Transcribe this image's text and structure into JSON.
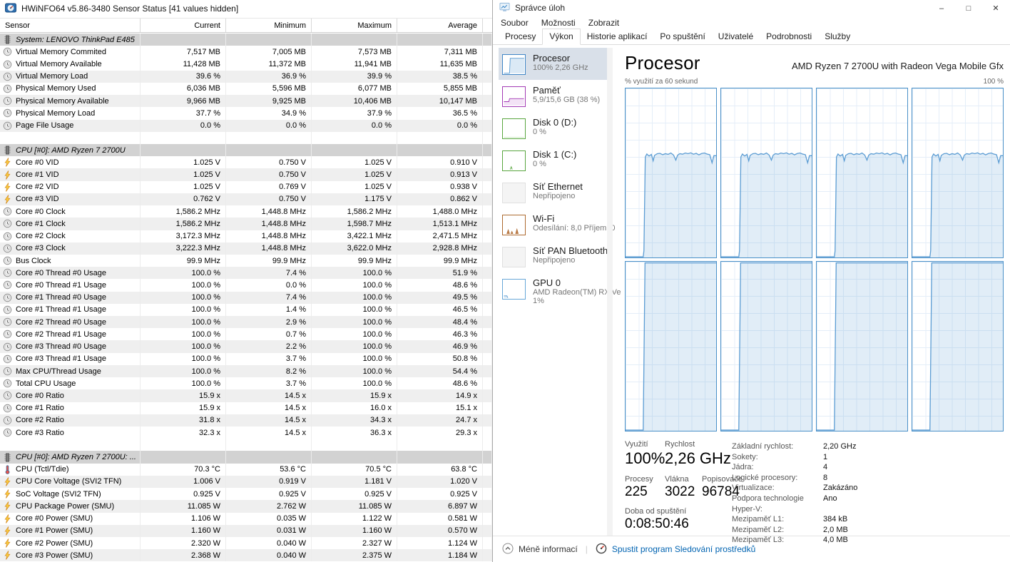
{
  "hwinfo": {
    "title": "HWiNFO64 v5.86-3480 Sensor Status [41 values hidden]",
    "columns": [
      "Sensor",
      "Current",
      "Minimum",
      "Maximum",
      "Average"
    ],
    "rows": [
      {
        "type": "group",
        "icon": "chip-icon",
        "label": "System: LENOVO ThinkPad E485"
      },
      {
        "type": "data",
        "icon": "clock-icon",
        "label": "Virtual Memory Commited",
        "values": [
          "7,517 MB",
          "7,005 MB",
          "7,573 MB",
          "7,311 MB"
        ],
        "shade": false
      },
      {
        "type": "data",
        "icon": "clock-icon",
        "label": "Virtual Memory Available",
        "values": [
          "11,428 MB",
          "11,372 MB",
          "11,941 MB",
          "11,635 MB"
        ],
        "shade": false
      },
      {
        "type": "data",
        "icon": "clock-icon",
        "label": "Virtual Memory Load",
        "values": [
          "39.6 %",
          "36.9 %",
          "39.9 %",
          "38.5 %"
        ],
        "shade": true
      },
      {
        "type": "data",
        "icon": "clock-icon",
        "label": "Physical Memory Used",
        "values": [
          "6,036 MB",
          "5,596 MB",
          "6,077 MB",
          "5,855 MB"
        ],
        "shade": false
      },
      {
        "type": "data",
        "icon": "clock-icon",
        "label": "Physical Memory Available",
        "values": [
          "9,966 MB",
          "9,925 MB",
          "10,406 MB",
          "10,147 MB"
        ],
        "shade": true
      },
      {
        "type": "data",
        "icon": "clock-icon",
        "label": "Physical Memory Load",
        "values": [
          "37.7 %",
          "34.9 %",
          "37.9 %",
          "36.5 %"
        ],
        "shade": false
      },
      {
        "type": "data",
        "icon": "clock-icon",
        "label": "Page File Usage",
        "values": [
          "0.0 %",
          "0.0 %",
          "0.0 %",
          "0.0 %"
        ],
        "shade": true
      },
      {
        "type": "blank"
      },
      {
        "type": "group",
        "icon": "chip-icon",
        "label": "CPU [#0]: AMD Ryzen 7 2700U"
      },
      {
        "type": "data",
        "icon": "bolt-icon",
        "label": "Core #0 VID",
        "values": [
          "1.025 V",
          "0.750 V",
          "1.025 V",
          "0.910 V"
        ],
        "shade": false
      },
      {
        "type": "data",
        "icon": "bolt-icon",
        "label": "Core #1 VID",
        "values": [
          "1.025 V",
          "0.750 V",
          "1.025 V",
          "0.913 V"
        ],
        "shade": true
      },
      {
        "type": "data",
        "icon": "bolt-icon",
        "label": "Core #2 VID",
        "values": [
          "1.025 V",
          "0.769 V",
          "1.025 V",
          "0.938 V"
        ],
        "shade": false
      },
      {
        "type": "data",
        "icon": "bolt-icon",
        "label": "Core #3 VID",
        "values": [
          "0.762 V",
          "0.750 V",
          "1.175 V",
          "0.862 V"
        ],
        "shade": true
      },
      {
        "type": "data",
        "icon": "clock-icon",
        "label": "Core #0 Clock",
        "values": [
          "1,586.2 MHz",
          "1,448.8 MHz",
          "1,586.2 MHz",
          "1,488.0 MHz"
        ],
        "shade": false
      },
      {
        "type": "data",
        "icon": "clock-icon",
        "label": "Core #1 Clock",
        "values": [
          "1,586.2 MHz",
          "1,448.8 MHz",
          "1,598.7 MHz",
          "1,513.1 MHz"
        ],
        "shade": true
      },
      {
        "type": "data",
        "icon": "clock-icon",
        "label": "Core #2 Clock",
        "values": [
          "3,172.3 MHz",
          "1,448.8 MHz",
          "3,422.1 MHz",
          "2,471.5 MHz"
        ],
        "shade": false
      },
      {
        "type": "data",
        "icon": "clock-icon",
        "label": "Core #3 Clock",
        "values": [
          "3,222.3 MHz",
          "1,448.8 MHz",
          "3,622.0 MHz",
          "2,928.8 MHz"
        ],
        "shade": true
      },
      {
        "type": "data",
        "icon": "clock-icon",
        "label": "Bus Clock",
        "values": [
          "99.9 MHz",
          "99.9 MHz",
          "99.9 MHz",
          "99.9 MHz"
        ],
        "shade": false
      },
      {
        "type": "data",
        "icon": "clock-icon",
        "label": "Core #0 Thread #0 Usage",
        "values": [
          "100.0 %",
          "7.4 %",
          "100.0 %",
          "51.9 %"
        ],
        "shade": true
      },
      {
        "type": "data",
        "icon": "clock-icon",
        "label": "Core #0 Thread #1 Usage",
        "values": [
          "100.0 %",
          "0.0 %",
          "100.0 %",
          "48.6 %"
        ],
        "shade": false
      },
      {
        "type": "data",
        "icon": "clock-icon",
        "label": "Core #1 Thread #0 Usage",
        "values": [
          "100.0 %",
          "7.4 %",
          "100.0 %",
          "49.5 %"
        ],
        "shade": true
      },
      {
        "type": "data",
        "icon": "clock-icon",
        "label": "Core #1 Thread #1 Usage",
        "values": [
          "100.0 %",
          "1.4 %",
          "100.0 %",
          "46.5 %"
        ],
        "shade": false
      },
      {
        "type": "data",
        "icon": "clock-icon",
        "label": "Core #2 Thread #0 Usage",
        "values": [
          "100.0 %",
          "2.9 %",
          "100.0 %",
          "48.4 %"
        ],
        "shade": true
      },
      {
        "type": "data",
        "icon": "clock-icon",
        "label": "Core #2 Thread #1 Usage",
        "values": [
          "100.0 %",
          "0.7 %",
          "100.0 %",
          "46.3 %"
        ],
        "shade": false
      },
      {
        "type": "data",
        "icon": "clock-icon",
        "label": "Core #3 Thread #0 Usage",
        "values": [
          "100.0 %",
          "2.2 %",
          "100.0 %",
          "46.9 %"
        ],
        "shade": true
      },
      {
        "type": "data",
        "icon": "clock-icon",
        "label": "Core #3 Thread #1 Usage",
        "values": [
          "100.0 %",
          "3.7 %",
          "100.0 %",
          "50.8 %"
        ],
        "shade": false
      },
      {
        "type": "data",
        "icon": "clock-icon",
        "label": "Max CPU/Thread Usage",
        "values": [
          "100.0 %",
          "8.2 %",
          "100.0 %",
          "54.4 %"
        ],
        "shade": true
      },
      {
        "type": "data",
        "icon": "clock-icon",
        "label": "Total CPU Usage",
        "values": [
          "100.0 %",
          "3.7 %",
          "100.0 %",
          "48.6 %"
        ],
        "shade": false
      },
      {
        "type": "data",
        "icon": "clock-icon",
        "label": "Core #0 Ratio",
        "values": [
          "15.9 x",
          "14.5 x",
          "15.9 x",
          "14.9 x"
        ],
        "shade": true
      },
      {
        "type": "data",
        "icon": "clock-icon",
        "label": "Core #1 Ratio",
        "values": [
          "15.9 x",
          "14.5 x",
          "16.0 x",
          "15.1 x"
        ],
        "shade": false
      },
      {
        "type": "data",
        "icon": "clock-icon",
        "label": "Core #2 Ratio",
        "values": [
          "31.8 x",
          "14.5 x",
          "34.3 x",
          "24.7 x"
        ],
        "shade": true
      },
      {
        "type": "data",
        "icon": "clock-icon",
        "label": "Core #3 Ratio",
        "values": [
          "32.3 x",
          "14.5 x",
          "36.3 x",
          "29.3 x"
        ],
        "shade": false
      },
      {
        "type": "blank"
      },
      {
        "type": "group",
        "icon": "chip-icon",
        "label": "CPU [#0]: AMD Ryzen 7 2700U: ..."
      },
      {
        "type": "data",
        "icon": "thermo-icon",
        "label": "CPU (Tctl/Tdie)",
        "values": [
          "70.3 °C",
          "53.6 °C",
          "70.5 °C",
          "63.8 °C"
        ],
        "shade": false
      },
      {
        "type": "data",
        "icon": "bolt-icon",
        "label": "CPU Core Voltage (SVI2 TFN)",
        "values": [
          "1.006 V",
          "0.919 V",
          "1.181 V",
          "1.020 V"
        ],
        "shade": true
      },
      {
        "type": "data",
        "icon": "bolt-icon",
        "label": "SoC Voltage (SVI2 TFN)",
        "values": [
          "0.925 V",
          "0.925 V",
          "0.925 V",
          "0.925 V"
        ],
        "shade": false
      },
      {
        "type": "data",
        "icon": "bolt-icon",
        "label": "CPU Package Power (SMU)",
        "values": [
          "11.085 W",
          "2.762 W",
          "11.085 W",
          "6.897 W"
        ],
        "shade": true
      },
      {
        "type": "data",
        "icon": "bolt-icon",
        "label": "Core #0 Power (SMU)",
        "values": [
          "1.106 W",
          "0.035 W",
          "1.122 W",
          "0.581 W"
        ],
        "shade": false
      },
      {
        "type": "data",
        "icon": "bolt-icon",
        "label": "Core #1 Power (SMU)",
        "values": [
          "1.160 W",
          "0.031 W",
          "1.160 W",
          "0.570 W"
        ],
        "shade": true
      },
      {
        "type": "data",
        "icon": "bolt-icon",
        "label": "Core #2 Power (SMU)",
        "values": [
          "2.320 W",
          "0.040 W",
          "2.327 W",
          "1.124 W"
        ],
        "shade": false
      },
      {
        "type": "data",
        "icon": "bolt-icon",
        "label": "Core #3 Power (SMU)",
        "values": [
          "2.368 W",
          "0.040 W",
          "2.375 W",
          "1.184 W"
        ],
        "shade": true
      }
    ]
  },
  "taskmgr": {
    "title": "Správce úloh",
    "window_controls": {
      "minimize": "–",
      "maximize": "□",
      "close": "✕"
    },
    "menu": [
      "Soubor",
      "Možnosti",
      "Zobrazit"
    ],
    "tabs": [
      {
        "label": "Procesy",
        "active": false
      },
      {
        "label": "Výkon",
        "active": true
      },
      {
        "label": "Historie aplikací",
        "active": false
      },
      {
        "label": "Po spuštění",
        "active": false
      },
      {
        "label": "Uživatelé",
        "active": false
      },
      {
        "label": "Podrobnosti",
        "active": false
      },
      {
        "label": "Služby",
        "active": false
      }
    ],
    "sidebar": [
      {
        "id": "cpu",
        "title": "Procesor",
        "subs": [
          "100% 2,26 GHz"
        ],
        "thumb": "cpu",
        "color": "#3f85c6",
        "selected": true
      },
      {
        "id": "memory",
        "title": "Paměť",
        "subs": [
          "5,9/15,6 GB (38 %)"
        ],
        "thumb": "mem",
        "color": "#a33ab5",
        "selected": false
      },
      {
        "id": "disk0",
        "title": "Disk 0 (D:)",
        "subs": [
          "0 %"
        ],
        "thumb": "disk",
        "color": "#59a63f",
        "selected": false
      },
      {
        "id": "disk1",
        "title": "Disk 1 (C:)",
        "subs": [
          "0 %"
        ],
        "thumb": "disk2",
        "color": "#59a63f",
        "selected": false
      },
      {
        "id": "ethernet",
        "title": "Síť Ethernet",
        "subs": [
          "Nepřipojeno"
        ],
        "thumb": "off",
        "color": "#e0e0e0",
        "selected": false
      },
      {
        "id": "wifi",
        "title": "Wi-Fi",
        "subs": [
          "Odesílání: 8,0 Příjem: 0"
        ],
        "thumb": "wifi",
        "color": "#ad6a2f",
        "selected": false
      },
      {
        "id": "bluetooth",
        "title": "Síť PAN Bluetooth",
        "subs": [
          "Nepřipojeno"
        ],
        "thumb": "off",
        "color": "#e0e0e0",
        "selected": false
      },
      {
        "id": "gpu",
        "title": "GPU 0",
        "subs": [
          "AMD Radeon(TM) RX Ve",
          "1%"
        ],
        "thumb": "gpu",
        "color": "#67a7d8",
        "selected": false
      }
    ],
    "main": {
      "title": "Procesor",
      "subtitle": "AMD Ryzen 7 2700U with Radeon Vega Mobile Gfx",
      "axis_left": "% využití za 60 sekund",
      "axis_right": "100 %",
      "graphs": {
        "count": 8,
        "top_row_plateau_pct": 61,
        "bottom_row_plateau_pct": 100,
        "activity_start_pct": 20,
        "line_color": "#5b9cd3",
        "border_color": "#4a90c8"
      },
      "stats": {
        "utilization_label": "Využití",
        "utilization": "100%",
        "speed_label": "Rychlost",
        "speed": "2,26 GHz",
        "processes_label": "Procesy",
        "processes": "225",
        "threads_label": "Vlákna",
        "threads": "3022",
        "handles_label": "Popisovače",
        "handles": "96784",
        "uptime_label": "Doba od spuštění",
        "uptime": "0:08:50:46"
      },
      "details": [
        {
          "label": "Základní rychlost:",
          "value": "2,20 GHz"
        },
        {
          "label": "Sokety:",
          "value": "1"
        },
        {
          "label": "Jádra:",
          "value": "4"
        },
        {
          "label": "Logické procesory:",
          "value": "8"
        },
        {
          "label": "Virtualizace:",
          "value": "Zakázáno"
        },
        {
          "label": "Podpora technologie Hyper-V:",
          "value": "Ano"
        },
        {
          "label": "Mezipaměť L1:",
          "value": "384 kB"
        },
        {
          "label": "Mezipaměť L2:",
          "value": "2,0 MB"
        },
        {
          "label": "Mezipaměť L3:",
          "value": "4,0 MB"
        }
      ]
    },
    "footer": {
      "less_info": "Méně informací",
      "separator": "|",
      "open_resmon": "Spustit program Sledování prostředků"
    }
  }
}
